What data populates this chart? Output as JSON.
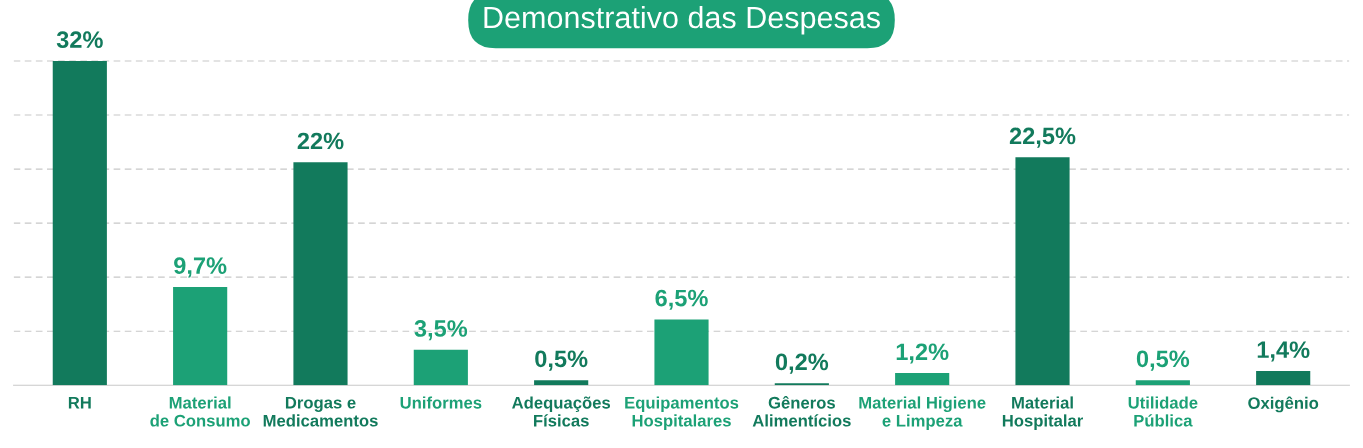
{
  "chart_data": {
    "type": "bar",
    "title": "Demonstrativo das Despesas",
    "categories": [
      "RH",
      "Material\nde Consumo",
      "Drogas e\nMedicamentos",
      "Uniformes",
      "Adequações\nFísicas",
      "Equipamentos\nHospitalares",
      "Gêneros\nAlimentícios",
      "Material Higiene\ne Limpeza",
      "Material\nHospitalar",
      "Utilidade\nPública",
      "Oxigênio"
    ],
    "values": [
      32,
      9.7,
      22,
      3.5,
      0.5,
      6.5,
      0.2,
      1.2,
      22.5,
      0.5,
      1.4
    ],
    "value_labels": [
      "32%",
      "9,7%",
      "22%",
      "3,5%",
      "0,5%",
      "6,5%",
      "0,2%",
      "1,2%",
      "22,5%",
      "0,5%",
      "1,4%"
    ],
    "colors": [
      "#127a5c",
      "#1ca176",
      "#127a5c",
      "#1ca176",
      "#127a5c",
      "#1ca176",
      "#127a5c",
      "#1ca176",
      "#127a5c",
      "#1ca176",
      "#127a5c"
    ],
    "yticks": [
      {
        "value": 5.33,
        "label": null
      },
      {
        "value": 10.67,
        "label": null
      },
      {
        "value": 16,
        "label": null
      },
      {
        "value": 21.33,
        "label": null
      },
      {
        "value": 26.67,
        "label": null
      },
      {
        "value": 32,
        "label": null
      }
    ],
    "tick_labels": "x",
    "grid": "y"
  }
}
